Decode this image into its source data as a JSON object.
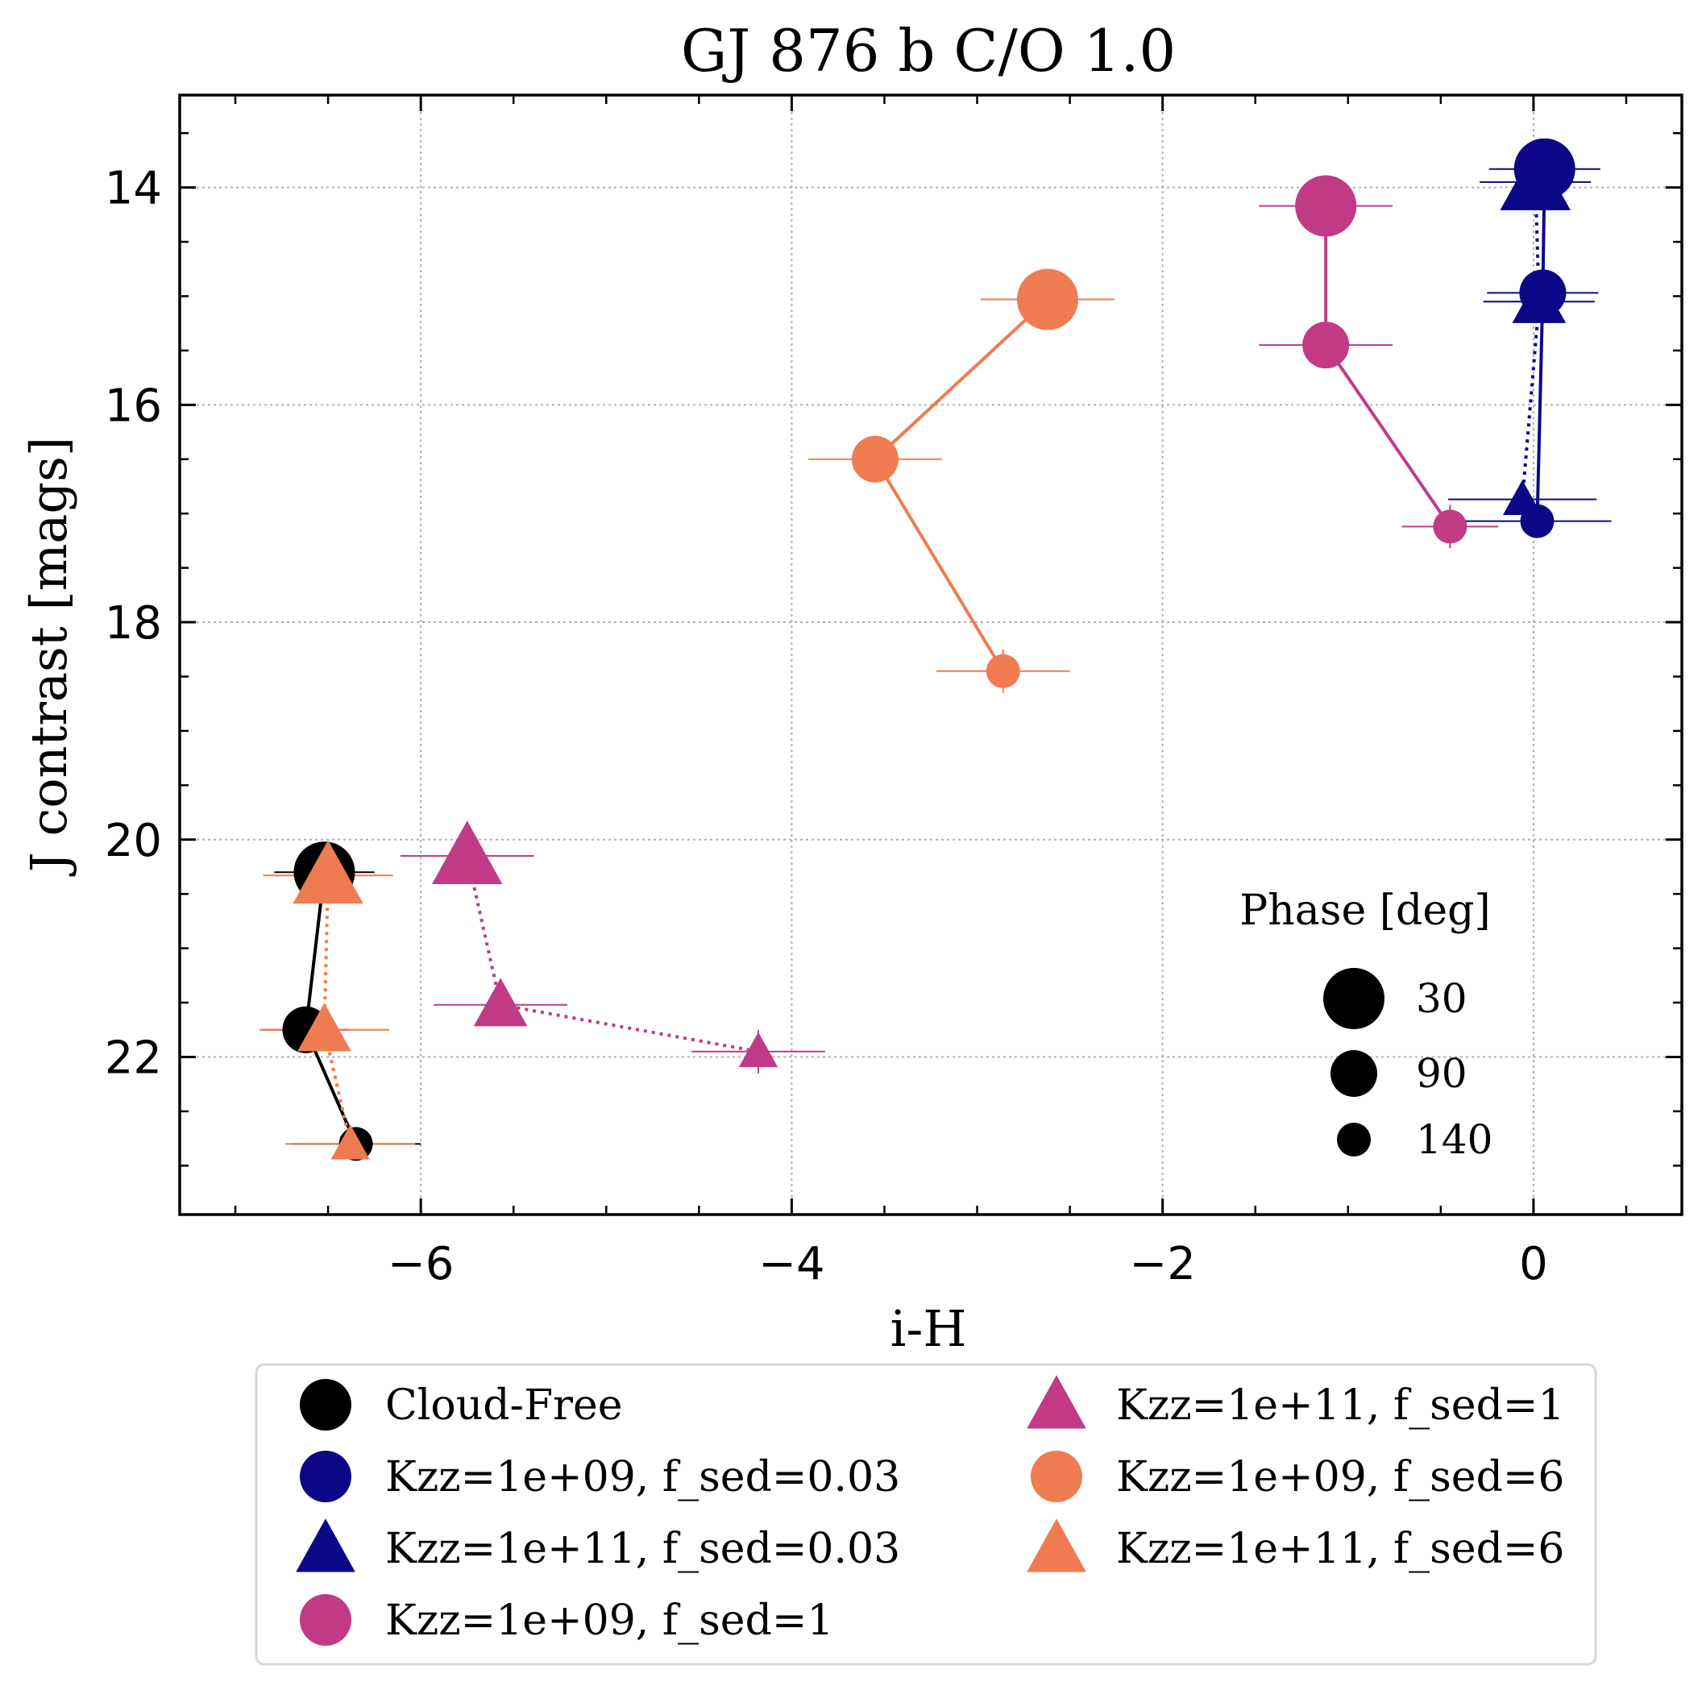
{
  "chart_data": {
    "type": "scatter",
    "title": "GJ 876 b C/O 1.0",
    "xlabel": "i-H",
    "ylabel": "J contrast [mags]",
    "xlim": [
      -7.3,
      0.8
    ],
    "ylim": [
      23.45,
      13.15
    ],
    "y_inverted": true,
    "grid": true,
    "x_ticks": [
      -6,
      -4,
      -2,
      0
    ],
    "x_tick_labels": [
      "−6",
      "−4",
      "−2",
      "0"
    ],
    "y_ticks": [
      14,
      16,
      18,
      20,
      22
    ],
    "y_tick_labels": [
      "14",
      "16",
      "18",
      "20",
      "22"
    ],
    "phase_legend": {
      "title": "Phase [deg]",
      "entries": [
        {
          "label": "30",
          "phase": 30
        },
        {
          "label": "90",
          "phase": 90
        },
        {
          "label": "140",
          "phase": 140
        }
      ]
    },
    "series": [
      {
        "name": "Cloud-Free",
        "label": "Cloud-Free",
        "color": "#000000",
        "marker": "circle",
        "linestyle": "solid",
        "points": [
          {
            "phase": 30,
            "x": -6.52,
            "y": 20.3,
            "xerr": 0.27,
            "yerr": 0.05
          },
          {
            "phase": 90,
            "x": -6.62,
            "y": 21.75,
            "xerr": 0.23,
            "yerr": 0.05
          },
          {
            "phase": 140,
            "x": -6.35,
            "y": 22.8,
            "xerr": 0.35,
            "yerr": 0.15
          }
        ]
      },
      {
        "name": "Kzz=1e+09, f_sed=0.03",
        "label": "Kzz=1e+09, f_sed=0.03",
        "color": "#0c0786",
        "marker": "circle",
        "linestyle": "solid",
        "points": [
          {
            "phase": 30,
            "x": 0.06,
            "y": 13.83,
            "xerr": 0.3,
            "yerr": 0.03
          },
          {
            "phase": 90,
            "x": 0.05,
            "y": 14.97,
            "xerr": 0.3,
            "yerr": 0.03
          },
          {
            "phase": 140,
            "x": 0.02,
            "y": 17.07,
            "xerr": 0.4,
            "yerr": 0.03
          }
        ]
      },
      {
        "name": "Kzz=1e+11, f_sed=0.03",
        "label": "Kzz=1e+11, f_sed=0.03",
        "color": "#0c0786",
        "marker": "triangle",
        "linestyle": "dotted",
        "points": [
          {
            "phase": 30,
            "x": 0.01,
            "y": 13.95,
            "xerr": 0.3,
            "yerr": 0.03
          },
          {
            "phase": 90,
            "x": 0.03,
            "y": 15.05,
            "xerr": 0.3,
            "yerr": 0.03
          },
          {
            "phase": 140,
            "x": -0.06,
            "y": 16.87,
            "xerr": 0.4,
            "yerr": 0.03
          }
        ]
      },
      {
        "name": "Kzz=1e+09, f_sed=1",
        "label": "Kzz=1e+09, f_sed=1",
        "color": "#c13a86",
        "marker": "circle",
        "linestyle": "solid",
        "points": [
          {
            "phase": 30,
            "x": -1.12,
            "y": 14.17,
            "xerr": 0.36,
            "yerr": 0.03
          },
          {
            "phase": 90,
            "x": -1.12,
            "y": 15.45,
            "xerr": 0.36,
            "yerr": 0.03
          },
          {
            "phase": 140,
            "x": -0.45,
            "y": 17.12,
            "xerr": 0.26,
            "yerr": 0.2
          }
        ]
      },
      {
        "name": "Kzz=1e+11, f_sed=1",
        "label": "Kzz=1e+11, f_sed=1",
        "color": "#c13a86",
        "marker": "triangle",
        "linestyle": "dotted",
        "points": [
          {
            "phase": 30,
            "x": -5.75,
            "y": 20.15,
            "xerr": 0.36,
            "yerr": 0.03
          },
          {
            "phase": 90,
            "x": -5.57,
            "y": 21.52,
            "xerr": 0.36,
            "yerr": 0.03
          },
          {
            "phase": 140,
            "x": -4.18,
            "y": 21.95,
            "xerr": 0.36,
            "yerr": 0.2
          }
        ]
      },
      {
        "name": "Kzz=1e+09, f_sed=6",
        "label": "Kzz=1e+09, f_sed=6",
        "color": "#ef7b51",
        "marker": "circle",
        "linestyle": "solid",
        "points": [
          {
            "phase": 30,
            "x": -2.62,
            "y": 15.03,
            "xerr": 0.36,
            "yerr": 0.03
          },
          {
            "phase": 90,
            "x": -3.55,
            "y": 16.5,
            "xerr": 0.36,
            "yerr": 0.03
          },
          {
            "phase": 140,
            "x": -2.86,
            "y": 18.45,
            "xerr": 0.36,
            "yerr": 0.2
          }
        ]
      },
      {
        "name": "Kzz=1e+11, f_sed=6",
        "label": "Kzz=1e+11, f_sed=6",
        "color": "#ef7b51",
        "marker": "triangle",
        "linestyle": "dotted",
        "points": [
          {
            "phase": 30,
            "x": -6.5,
            "y": 20.33,
            "xerr": 0.35,
            "yerr": 0.03
          },
          {
            "phase": 90,
            "x": -6.52,
            "y": 21.75,
            "xerr": 0.35,
            "yerr": 0.03
          },
          {
            "phase": 140,
            "x": -6.38,
            "y": 22.8,
            "xerr": 0.35,
            "yerr": 0.03
          }
        ]
      }
    ]
  }
}
